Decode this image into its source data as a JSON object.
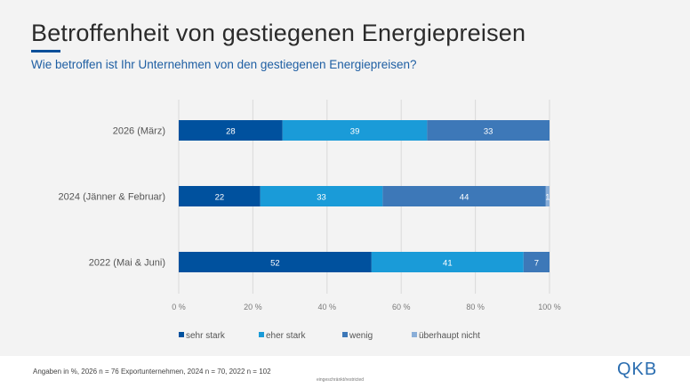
{
  "header": {
    "title": "Betroffenheit von gestiegenen Energiepreisen",
    "subtitle": "Wie betroffen ist Ihr Unternehmen von den gestiegenen Energiepreisen?"
  },
  "chart_data": {
    "type": "bar",
    "orientation": "horizontal",
    "stacked": true,
    "categories": [
      "2026 (März)",
      "2024 (Jänner & Februar)",
      "2022 (Mai & Juni)"
    ],
    "series": [
      {
        "name": "sehr stark",
        "color": "#00519e",
        "values": [
          28,
          22,
          52
        ]
      },
      {
        "name": "eher stark",
        "color": "#1a9bd8",
        "values": [
          39,
          33,
          41
        ]
      },
      {
        "name": "wenig",
        "color": "#3d78b8",
        "values": [
          33,
          44,
          7
        ]
      },
      {
        "name": "überhaupt nicht",
        "color": "#8aaed8",
        "values": [
          0,
          1,
          0
        ]
      }
    ],
    "xlim": [
      0,
      100
    ],
    "xticks": [
      "0 %",
      "20 %",
      "40 %",
      "60 %",
      "80 %",
      "100 %"
    ],
    "grid": true,
    "legend": "bottom"
  },
  "footer": {
    "note": "Angaben in %, 2026 n = 76 Exportunternehmen, 2024 n = 70, 2022 n = 102",
    "classification": "eingeschränkt/restricted",
    "logo": "OeKB"
  }
}
